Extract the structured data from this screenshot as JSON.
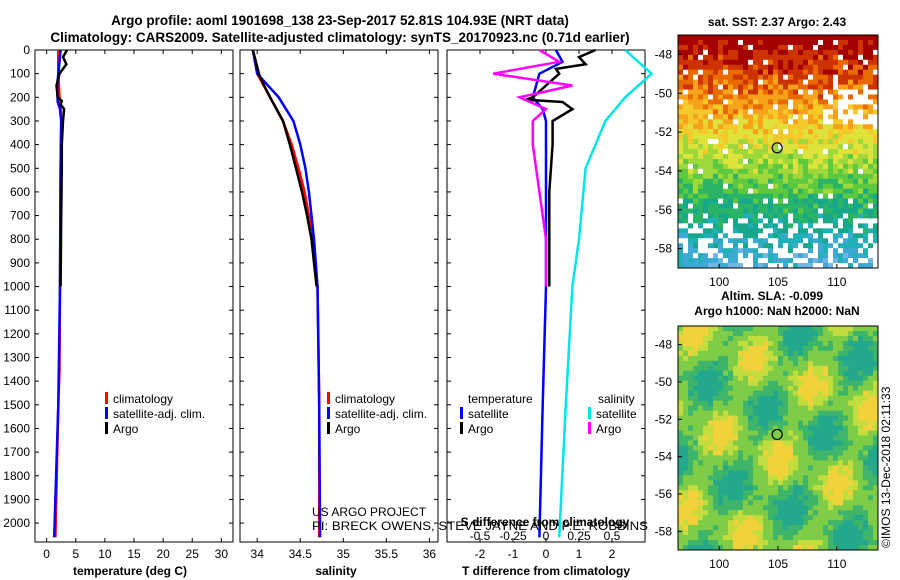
{
  "header": {
    "title_line1": "Argo profile: aoml 1901698_138 23-Sep-2017 52.81S 104.93E (NRT data)",
    "title_line2": "Climatology: CARS2009. Satellite-adjusted climatology: synTS_20170923.nc (0.71d earlier)"
  },
  "colors": {
    "climatology": "#ff0000",
    "satellite_adj": "#0000ff",
    "argo": "#000000",
    "satellite_salinity": "#00e5e5",
    "argo_salinity": "#ff00ff"
  },
  "chart_data": [
    {
      "type": "line",
      "id": "temperature",
      "xlabel": "temperature (deg C)",
      "ylabel": "",
      "xlim": [
        -2,
        32
      ],
      "ylim": [
        2080,
        0
      ],
      "xticks": [
        "0",
        "5",
        "10",
        "15",
        "20",
        "25",
        "30"
      ],
      "xtick_values": [
        0,
        5,
        10,
        15,
        20,
        25,
        30
      ],
      "yticks": [
        "0",
        "100",
        "200",
        "300",
        "400",
        "500",
        "600",
        "700",
        "800",
        "900",
        "1000",
        "1100",
        "1200",
        "1300",
        "1400",
        "1500",
        "1600",
        "1700",
        "1800",
        "1900",
        "2000"
      ],
      "ytick_values": [
        0,
        100,
        200,
        300,
        400,
        500,
        600,
        700,
        800,
        900,
        1000,
        1100,
        1200,
        1300,
        1400,
        1500,
        1600,
        1700,
        1800,
        1900,
        2000
      ],
      "legend": [
        "climatology",
        "satellite-adj. clim.",
        "Argo"
      ],
      "series": [
        {
          "name": "climatology",
          "color": "#ff0000",
          "depth": [
            0,
            100,
            200,
            250,
            300,
            500,
            1000,
            1350,
            1500,
            2060
          ],
          "values": [
            2.0,
            2.0,
            2.2,
            2.4,
            2.5,
            2.4,
            2.3,
            2.2,
            2.0,
            1.5
          ]
        },
        {
          "name": "satellite-adj. clim.",
          "color": "#0000ff",
          "depth": [
            0,
            50,
            150,
            220,
            250,
            300,
            500,
            1000,
            1500,
            2060
          ],
          "values": [
            2.4,
            2.2,
            1.8,
            1.9,
            2.3,
            2.5,
            2.4,
            2.3,
            2.0,
            1.3
          ]
        },
        {
          "name": "Argo",
          "color": "#000000",
          "depth": [
            0,
            30,
            60,
            100,
            150,
            200,
            215,
            230,
            250,
            300,
            400,
            500,
            700,
            1000
          ],
          "values": [
            3.5,
            2.8,
            3.4,
            2.2,
            1.7,
            1.9,
            2.6,
            2.4,
            3.0,
            2.8,
            2.6,
            2.6,
            2.5,
            2.4
          ]
        }
      ]
    },
    {
      "type": "line",
      "id": "salinity",
      "xlabel": "salinity",
      "ylabel": "",
      "xlim": [
        33.8,
        36.1
      ],
      "ylim": [
        2080,
        0
      ],
      "xticks": [
        "34",
        "34.5",
        "35",
        "35.5",
        "36"
      ],
      "xtick_values": [
        34,
        34.5,
        35,
        35.5,
        36
      ],
      "legend": [
        "climatology",
        "satellite-adj. clim.",
        "Argo"
      ],
      "series": [
        {
          "name": "climatology",
          "color": "#ff0000",
          "depth": [
            0,
            100,
            200,
            300,
            400,
            500,
            600,
            700,
            800,
            900,
            1000,
            1200,
            1500,
            2060
          ],
          "values": [
            33.95,
            34.0,
            34.15,
            34.3,
            34.4,
            34.48,
            34.55,
            34.6,
            34.64,
            34.67,
            34.7,
            34.71,
            34.72,
            34.72
          ]
        },
        {
          "name": "satellite-adj. clim.",
          "color": "#0000ff",
          "depth": [
            0,
            100,
            200,
            300,
            400,
            500,
            600,
            700,
            800,
            900,
            1000,
            1500,
            2060
          ],
          "values": [
            33.95,
            34.0,
            34.25,
            34.42,
            34.5,
            34.56,
            34.6,
            34.63,
            34.66,
            34.68,
            34.7,
            34.72,
            34.73
          ]
        },
        {
          "name": "Argo",
          "color": "#000000",
          "depth": [
            0,
            100,
            150,
            200,
            300,
            400,
            500,
            600,
            700,
            800,
            900,
            1000
          ],
          "values": [
            33.95,
            34.02,
            34.08,
            34.15,
            34.3,
            34.38,
            34.45,
            34.52,
            34.58,
            34.63,
            34.66,
            34.69
          ]
        }
      ]
    },
    {
      "type": "line",
      "id": "differences",
      "xlabel": "T difference from climatology",
      "xlabel_top": "S difference from climatology",
      "xlim": [
        -3,
        3
      ],
      "xticks": [
        "-2",
        "-1",
        "0",
        "1",
        "2"
      ],
      "xtick_values": [
        -2,
        -1,
        0,
        1,
        2
      ],
      "s_xticks": [
        "-0.5",
        "-0.25",
        "0",
        "0.25",
        "0.5"
      ],
      "ylim": [
        2080,
        0
      ],
      "legend_headings": [
        "temperature",
        "salinity"
      ],
      "legend": [
        "satellite",
        "Argo",
        "satellite",
        "Argo"
      ],
      "series": [
        {
          "name": "T satellite",
          "color": "#0000ff",
          "depth": [
            0,
            50,
            100,
            150,
            200,
            250,
            300,
            500,
            1000,
            1500,
            2060
          ],
          "values": [
            0.3,
            0.5,
            -0.2,
            -0.3,
            -0.4,
            -0.1,
            0.0,
            0.0,
            0.0,
            -0.1,
            -0.2
          ]
        },
        {
          "name": "T Argo",
          "color": "#000000",
          "depth": [
            0,
            30,
            60,
            80,
            100,
            150,
            200,
            210,
            220,
            250,
            300,
            400,
            600,
            800,
            1000
          ],
          "values": [
            1.5,
            1.0,
            1.2,
            0.3,
            0.4,
            0.0,
            -0.4,
            -0.6,
            0.5,
            0.8,
            0.2,
            0.2,
            0.1,
            0.1,
            0.1
          ]
        },
        {
          "name": "S satellite",
          "color": "#00e5e5",
          "depth": [
            0,
            100,
            200,
            300,
            500,
            800,
            1000,
            1500,
            2060
          ],
          "values": [
            0.6,
            0.8,
            0.6,
            0.45,
            0.3,
            0.25,
            0.2,
            0.15,
            0.1
          ]
        },
        {
          "name": "S Argo",
          "color": "#ff00ff",
          "depth": [
            0,
            50,
            100,
            150,
            200,
            250,
            300,
            400,
            600,
            800,
            1000
          ],
          "values": [
            -0.05,
            0.1,
            -0.4,
            0.2,
            -0.2,
            0.0,
            -0.1,
            -0.1,
            -0.05,
            0.0,
            0.0
          ]
        }
      ]
    },
    {
      "type": "heatmap",
      "id": "sst_map",
      "title": "sat. SST: 2.37 Argo: 2.43",
      "xticks": [
        "100",
        "105",
        "110"
      ],
      "xtick_values": [
        100,
        105,
        110
      ],
      "yticks": [
        "-48",
        "-50",
        "-52",
        "-54",
        "-56",
        "-58"
      ],
      "ytick_values": [
        -48,
        -50,
        -52,
        -54,
        -56,
        -58
      ],
      "xlim": [
        96.5,
        113.5
      ],
      "ylim": [
        -47,
        -59
      ],
      "marker": {
        "lon": 104.93,
        "lat": -52.81
      }
    },
    {
      "type": "heatmap",
      "id": "sla_map",
      "title_line1": "Altim. SLA: -0.099",
      "title_line2": "Argo h1000: NaN h2000: NaN",
      "xticks": [
        "100",
        "105",
        "110"
      ],
      "xtick_values": [
        100,
        105,
        110
      ],
      "yticks": [
        "-48",
        "-50",
        "-52",
        "-54",
        "-56",
        "-58"
      ],
      "ytick_values": [
        -48,
        -50,
        -52,
        -54,
        -56,
        -58
      ],
      "xlim": [
        96.5,
        113.5
      ],
      "ylim": [
        -47,
        -59
      ],
      "marker": {
        "lon": 104.93,
        "lat": -52.81
      }
    }
  ],
  "annotations": {
    "credit_line1": "US ARGO PROJECT",
    "credit_line2": "PI: BRECK OWENS, STEVE JAYNE AND P.E. ROBBINS",
    "imos_stamp": "©IMOS 13-Dec-2018 02:11:33"
  }
}
